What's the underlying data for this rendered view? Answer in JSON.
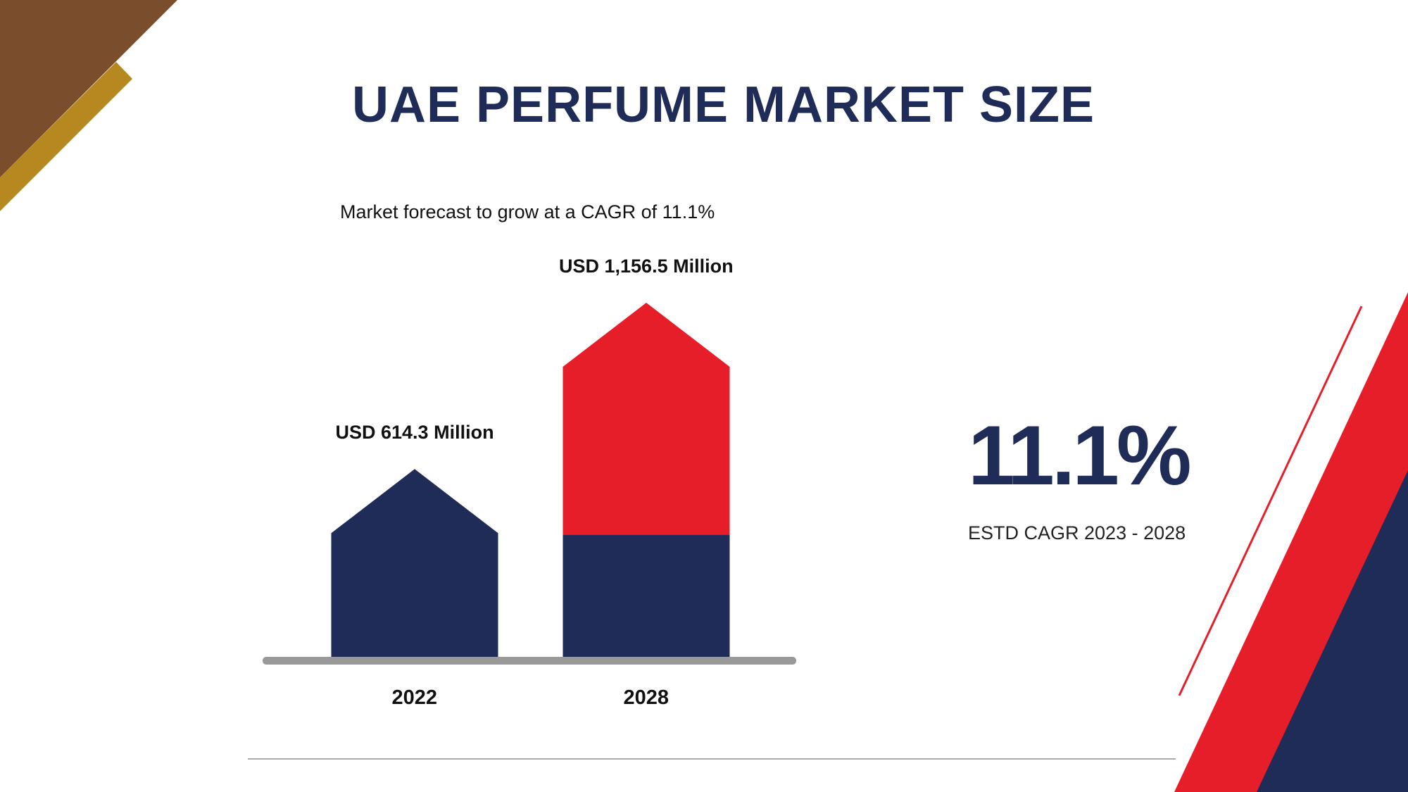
{
  "title": "UAE PERFUME MARKET SIZE",
  "subtitle": "Market forecast to grow at a CAGR of 11.1%",
  "colors": {
    "navy": "#1e2c57",
    "red": "#e51e2a",
    "brown": "#7a4e2d",
    "gold": "#b58820",
    "axis": "#999999"
  },
  "highlight": {
    "value": "11.1%",
    "caption": "ESTD CAGR 2023 - 2028"
  },
  "chart_data": {
    "type": "bar",
    "categories": [
      "2022",
      "2028"
    ],
    "values": [
      614.3,
      1156.5
    ],
    "data_labels": [
      "USD 614.3 Million",
      "USD 1,156.5 Million"
    ],
    "unit": "USD Million",
    "cagr": 11.1,
    "ylim": [
      0,
      1156.5
    ]
  }
}
